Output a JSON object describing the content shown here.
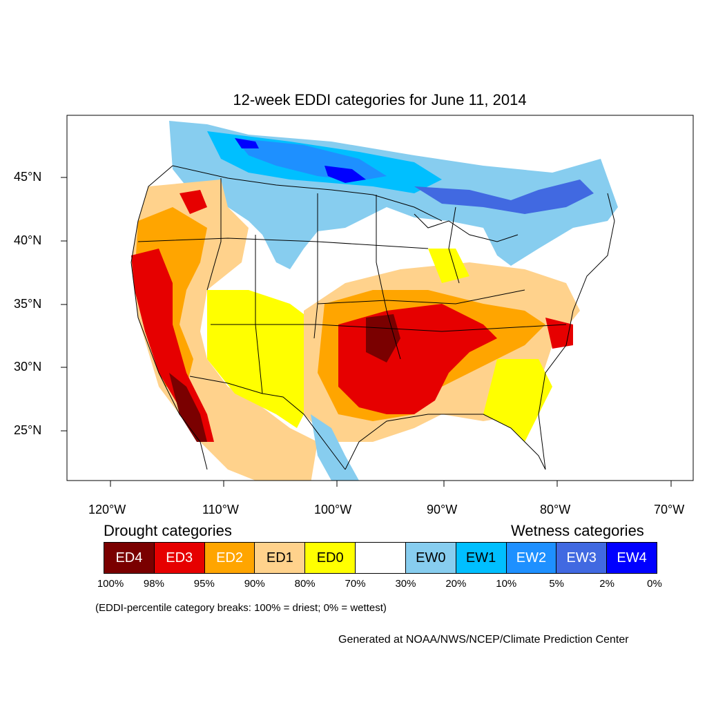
{
  "title": "12-week EDDI categories for June 11, 2014",
  "lat_labels": [
    "45°N",
    "40°N",
    "35°N",
    "30°N",
    "25°N"
  ],
  "lon_labels": [
    "120°W",
    "110°W",
    "100°W",
    "90°W",
    "80°W",
    "70°W"
  ],
  "drought_heading": "Drought categories",
  "wetness_heading": "Wetness categories",
  "legend": [
    {
      "label": "ED4",
      "color": "#7a0000",
      "text_color": "#ffffff"
    },
    {
      "label": "ED3",
      "color": "#e60000",
      "text_color": "#ffffff"
    },
    {
      "label": "ED2",
      "color": "#ffa500",
      "text_color": "#ffffff"
    },
    {
      "label": "ED1",
      "color": "#ffd28c",
      "text_color": "#000000"
    },
    {
      "label": "ED0",
      "color": "#ffff00",
      "text_color": "#000000"
    },
    {
      "label": "",
      "color": "#ffffff",
      "text_color": "#000000"
    },
    {
      "label": "EW0",
      "color": "#87cdef",
      "text_color": "#000000"
    },
    {
      "label": "EW1",
      "color": "#00bfff",
      "text_color": "#000000"
    },
    {
      "label": "EW2",
      "color": "#1e90ff",
      "text_color": "#ffffff"
    },
    {
      "label": "EW3",
      "color": "#4169e1",
      "text_color": "#ffffff"
    },
    {
      "label": "EW4",
      "color": "#0000ff",
      "text_color": "#ffffff"
    }
  ],
  "percent_breaks": [
    "100%",
    "98%",
    "95%",
    "90%",
    "80%",
    "70%",
    "30%",
    "20%",
    "10%",
    "5%",
    "2%",
    "0%"
  ],
  "note": "(EDDI-percentile category breaks: 100% = driest; 0% = wettest)",
  "credit": "Generated at NOAA/NWS/NCEP/Climate Prediction Center"
}
